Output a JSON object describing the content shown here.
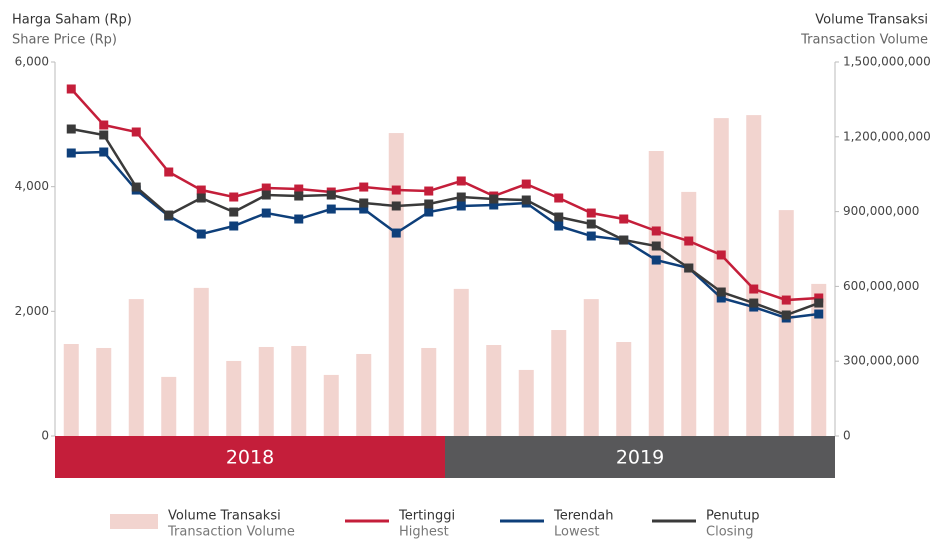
{
  "chart_data": {
    "type": "bar-line",
    "y_title": "Harga Saham (Rp)",
    "y_subtitle": "Share Price (Rp)",
    "y2_title": "Volume Transaksi",
    "y2_subtitle": "Transaction Volume",
    "categories": [
      null,
      null,
      null,
      null,
      null,
      null,
      null,
      null,
      null,
      null,
      null,
      null,
      null,
      null,
      null,
      null,
      null,
      null,
      null,
      null,
      null,
      null,
      null,
      null
    ],
    "x_groups": [
      {
        "label": "2018",
        "color": "#c41e3a"
      },
      {
        "label": "2019",
        "color": "#58585a"
      }
    ],
    "ylim": [
      0,
      6000
    ],
    "yticks": [
      0,
      {
        "value": 2000,
        "label": "2,000"
      },
      {
        "value": 4000,
        "label": "4,000"
      },
      {
        "value": 6000,
        "label": "6,000"
      }
    ],
    "y2lim": [
      0,
      1500000000
    ],
    "y2ticks": [
      0,
      {
        "value": 300000000,
        "label": "300,000,000"
      },
      {
        "value": 600000000,
        "label": "600,000,000"
      },
      {
        "value": 900000000,
        "label": "900,000,000"
      },
      {
        "value": 1200000000,
        "label": "1,200,000,000"
      },
      {
        "value": 1500000000,
        "label": "1,500,000,000"
      }
    ],
    "series": [
      {
        "name": "Volume Transaksi",
        "name_en": "Transaction Volume",
        "type": "bar",
        "axis": "y2",
        "color": "#f2d4cf",
        "values": [
          369000000,
          353000000,
          549000000,
          237000000,
          594000000,
          301000000,
          357000000,
          361000000,
          245000000,
          329000000,
          1215000000,
          353000000,
          590000000,
          365000000,
          265000000,
          425000000,
          549000000,
          377000000,
          1143000000,
          979000000,
          1275000000,
          1287000000,
          906000000,
          610000000
        ]
      },
      {
        "name": "Tertinggi",
        "name_en": "Highest",
        "type": "line",
        "color": "#c41e3a",
        "values": [
          5567,
          4989,
          4877,
          4235,
          3946,
          3834,
          3978,
          3962,
          3914,
          3994,
          3946,
          3930,
          4091,
          3850,
          4042,
          3818,
          3577,
          3481,
          3289,
          3128,
          2904,
          2358,
          2181,
          2214
        ]
      },
      {
        "name": "Terendah",
        "name_en": "Lowest",
        "type": "line",
        "color": "#0e3f7a",
        "values": [
          4540,
          4556,
          3946,
          3529,
          3240,
          3369,
          3577,
          3481,
          3641,
          3641,
          3256,
          3593,
          3690,
          3706,
          3738,
          3369,
          3208,
          3144,
          2823,
          2695,
          2214,
          2069,
          1893,
          1957
        ]
      },
      {
        "name": "Penutup",
        "name_en": "Closing",
        "type": "line",
        "color": "#3a3a3a",
        "values": [
          4925,
          4829,
          3994,
          3545,
          3818,
          3593,
          3866,
          3850,
          3866,
          3738,
          3690,
          3722,
          3834,
          3802,
          3786,
          3513,
          3401,
          3144,
          3048,
          2695,
          2310,
          2133,
          1941,
          2133
        ]
      }
    ]
  }
}
